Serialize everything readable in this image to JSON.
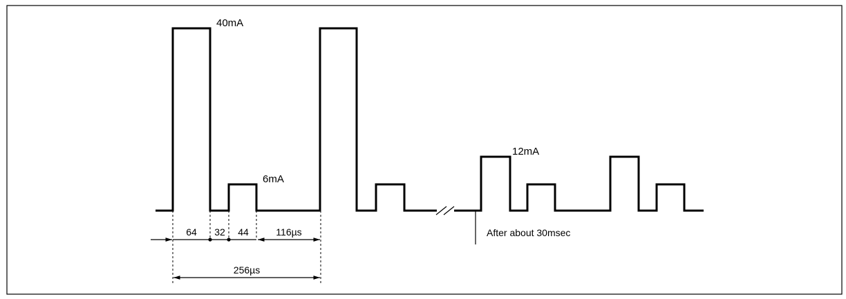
{
  "labels": {
    "current_high": "40mA",
    "current_low": "6mA",
    "current_later": "12mA",
    "note_after": "After about 30msec"
  },
  "dimensions": {
    "seg1": "64",
    "seg2": "32",
    "seg3": "44",
    "seg4": "116µs",
    "period": "256µs"
  },
  "colors": {
    "stroke": "#000000",
    "background": "#ffffff"
  }
}
